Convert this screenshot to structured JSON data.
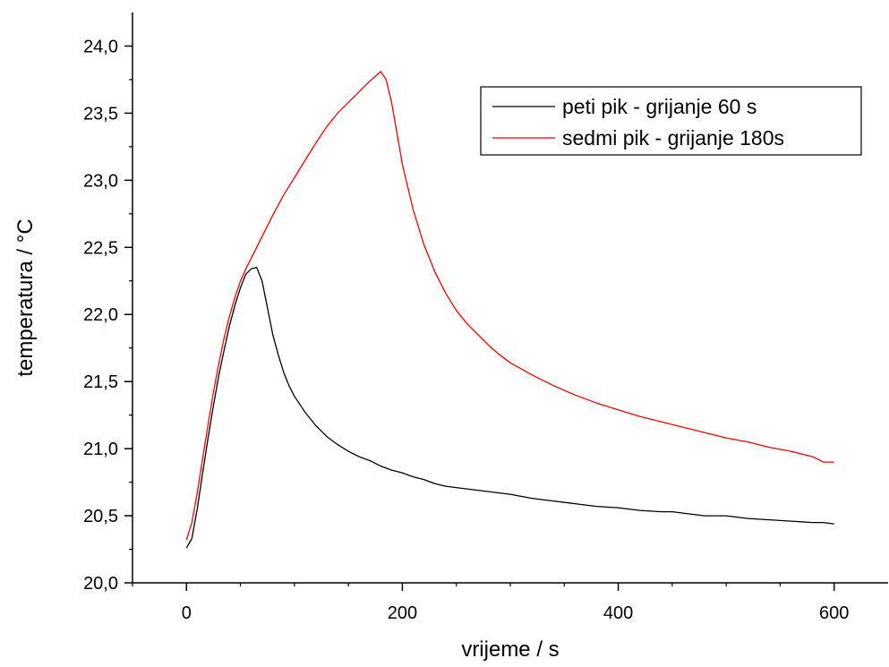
{
  "chart_data": {
    "type": "line",
    "xlabel": "vrijeme / s",
    "ylabel": "temperatura / °C",
    "xlim": [
      -50,
      650
    ],
    "ylim": [
      20.0,
      24.25
    ],
    "x_ticks": [
      0,
      200,
      400,
      600
    ],
    "x_tick_labels": [
      "0",
      "200",
      "400",
      "600"
    ],
    "y_ticks": [
      20.0,
      20.5,
      21.0,
      21.5,
      22.0,
      22.5,
      23.0,
      23.5,
      24.0
    ],
    "y_tick_labels": [
      "20,0",
      "20,5",
      "21,0",
      "21,5",
      "22,0",
      "22,5",
      "23,0",
      "23,5",
      "24,0"
    ],
    "grid": false,
    "legend_position": "top-right",
    "series": [
      {
        "name": "peti pik - grijanje 60 s",
        "color": "#000000",
        "x": [
          0,
          5,
          10,
          15,
          20,
          25,
          30,
          35,
          40,
          45,
          50,
          55,
          60,
          65,
          70,
          75,
          80,
          85,
          90,
          95,
          100,
          110,
          120,
          130,
          140,
          150,
          160,
          170,
          180,
          190,
          200,
          210,
          220,
          230,
          240,
          250,
          260,
          270,
          280,
          290,
          300,
          320,
          340,
          360,
          380,
          400,
          420,
          440,
          450,
          460,
          480,
          500,
          520,
          540,
          560,
          580,
          590,
          600
        ],
        "y": [
          20.26,
          20.33,
          20.55,
          20.82,
          21.08,
          21.32,
          21.55,
          21.74,
          21.92,
          22.07,
          22.2,
          22.3,
          22.34,
          22.35,
          22.25,
          22.05,
          21.85,
          21.7,
          21.57,
          21.47,
          21.39,
          21.27,
          21.17,
          21.09,
          21.03,
          20.98,
          20.94,
          20.91,
          20.87,
          20.84,
          20.82,
          20.79,
          20.77,
          20.74,
          20.72,
          20.71,
          20.7,
          20.69,
          20.68,
          20.67,
          20.66,
          20.63,
          20.61,
          20.59,
          20.57,
          20.56,
          20.54,
          20.53,
          20.53,
          20.52,
          20.5,
          20.5,
          20.48,
          20.47,
          20.46,
          20.45,
          20.45,
          20.44
        ]
      },
      {
        "name": "sedmi pik - grijanje 180s",
        "color": "#ff0000",
        "x": [
          0,
          5,
          10,
          15,
          20,
          25,
          30,
          35,
          40,
          45,
          50,
          55,
          60,
          70,
          80,
          90,
          100,
          110,
          120,
          130,
          140,
          150,
          160,
          170,
          180,
          185,
          190,
          195,
          200,
          210,
          220,
          230,
          240,
          250,
          260,
          270,
          280,
          290,
          300,
          320,
          340,
          360,
          380,
          400,
          420,
          440,
          460,
          480,
          500,
          520,
          540,
          560,
          580,
          590,
          600
        ],
        "y": [
          20.32,
          20.45,
          20.67,
          20.93,
          21.18,
          21.42,
          21.64,
          21.83,
          21.99,
          22.13,
          22.25,
          22.34,
          22.42,
          22.58,
          22.74,
          22.89,
          23.02,
          23.15,
          23.28,
          23.4,
          23.5,
          23.58,
          23.66,
          23.74,
          23.81,
          23.75,
          23.58,
          23.35,
          23.12,
          22.78,
          22.52,
          22.32,
          22.16,
          22.03,
          21.93,
          21.85,
          21.77,
          21.7,
          21.64,
          21.55,
          21.47,
          21.4,
          21.34,
          21.29,
          21.24,
          21.2,
          21.16,
          21.12,
          21.08,
          21.05,
          21.01,
          20.98,
          20.94,
          20.9,
          20.9
        ]
      }
    ]
  }
}
